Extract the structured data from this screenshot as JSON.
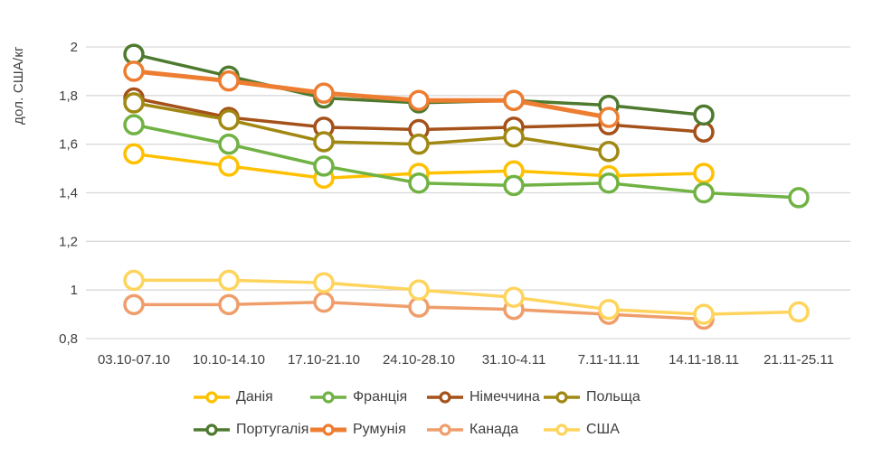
{
  "chart_data": {
    "type": "line",
    "title": "",
    "y_axis_title": "дол. США/кг",
    "xlabel": "",
    "ylim": [
      0.8,
      2.0
    ],
    "grid": true,
    "legend_position": "bottom",
    "legend_rows": 2,
    "background": "#ffffff",
    "gridline_color": "#d9d9d9",
    "axis_text_color": "#3f3f3f",
    "categories": [
      "03.10-07.10",
      "10.10-14.10",
      "17.10-21.10",
      "24.10-28.10",
      "31.10-4.11",
      "7.11-11.11",
      "14.11-18.11",
      "21.11-25.11"
    ],
    "y_ticks": [
      {
        "v": 2.0,
        "label": "2"
      },
      {
        "v": 1.8,
        "label": "1,8"
      },
      {
        "v": 1.6,
        "label": "1,6"
      },
      {
        "v": 1.4,
        "label": "1,4"
      },
      {
        "v": 1.2,
        "label": "1,2"
      },
      {
        "v": 1.0,
        "label": "1"
      },
      {
        "v": 0.8,
        "label": "0,8"
      }
    ],
    "series": [
      {
        "name": "Данія",
        "color": "#FFC000",
        "line_width": 3.5,
        "values": [
          1.56,
          1.51,
          1.46,
          1.48,
          1.49,
          1.47,
          1.48,
          null
        ]
      },
      {
        "name": "Франція",
        "color": "#70B244",
        "line_width": 3.5,
        "values": [
          1.68,
          1.6,
          1.51,
          1.44,
          1.43,
          1.44,
          1.4,
          1.38
        ]
      },
      {
        "name": "Німеччина",
        "color": "#A5511A",
        "line_width": 3.5,
        "values": [
          1.79,
          1.71,
          1.67,
          1.66,
          1.67,
          1.68,
          1.65,
          null
        ]
      },
      {
        "name": "Польща",
        "color": "#A08812",
        "line_width": 3.5,
        "values": [
          1.77,
          1.7,
          1.61,
          1.6,
          1.63,
          1.57,
          null,
          null
        ]
      },
      {
        "name": "Португалія",
        "color": "#4E7A2F",
        "line_width": 3.5,
        "values": [
          1.97,
          1.88,
          1.79,
          1.77,
          1.78,
          1.76,
          1.72,
          null
        ]
      },
      {
        "name": "Румунія",
        "color": "#ED7D31",
        "line_width": 5.0,
        "values": [
          1.9,
          1.86,
          1.81,
          1.78,
          1.78,
          1.71,
          null,
          null
        ]
      },
      {
        "name": "Канада",
        "color": "#EF9E6B",
        "line_width": 3.5,
        "values": [
          0.94,
          0.94,
          0.95,
          0.93,
          0.92,
          0.9,
          0.88,
          null
        ]
      },
      {
        "name": "США",
        "color": "#FFD45C",
        "line_width": 3.5,
        "values": [
          1.04,
          1.04,
          1.03,
          1.0,
          0.97,
          0.92,
          0.9,
          0.91
        ]
      }
    ]
  }
}
